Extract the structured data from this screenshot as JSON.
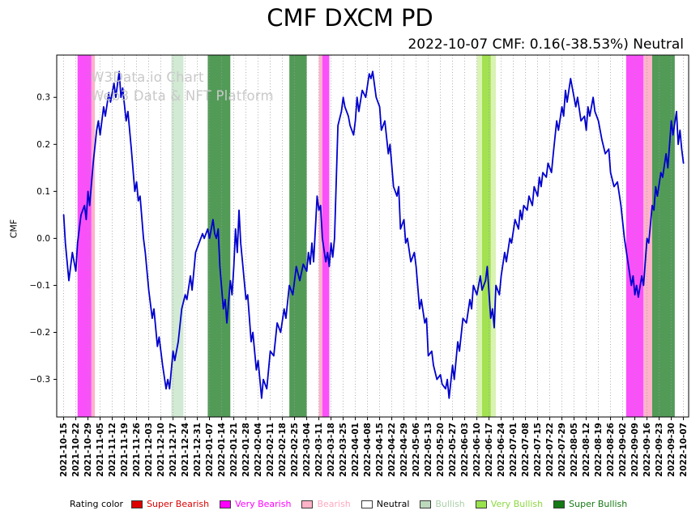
{
  "title": "CMF DXCM PD",
  "subtitle": "2022-10-07 CMF: 0.16(-38.53%) Neutral",
  "watermark": {
    "line1": "W3Data.io Chart",
    "line2": "Web3 Data & NFT Platform"
  },
  "legend": {
    "title": "Rating color",
    "items": [
      {
        "label": "Super Bearish",
        "color": "#dd0000",
        "text_color": "#dd0000"
      },
      {
        "label": "Very Bearish",
        "color": "#ff00ff",
        "text_color": "#ff00ff"
      },
      {
        "label": "Bearish",
        "color": "#ffb3c8",
        "text_color": "#ffa8c0"
      },
      {
        "label": "Neutral",
        "color": "#ffffff",
        "text_color": "#000000"
      },
      {
        "label": "Bullish",
        "color": "#bcd9bc",
        "text_color": "#a9cfa9"
      },
      {
        "label": "Very Bullish",
        "color": "#98e24e",
        "text_color": "#8bd83e"
      },
      {
        "label": "Super Bullish",
        "color": "#157915",
        "text_color": "#157915"
      }
    ]
  },
  "chart_data": {
    "type": "line",
    "title": "CMF DXCM PD",
    "xlabel": "",
    "ylabel": "CMF",
    "ylim": [
      -0.38,
      0.39
    ],
    "yticks": [
      -0.3,
      -0.2,
      -0.1,
      0.0,
      0.1,
      0.2,
      0.3
    ],
    "grid": "vertical-dotted",
    "x_start_date": "2021-10-15",
    "x_tick_labels": [
      "2021-10-15",
      "2021-10-22",
      "2021-10-29",
      "2021-11-05",
      "2021-11-12",
      "2021-11-19",
      "2021-11-26",
      "2021-12-03",
      "2021-12-10",
      "2021-12-17",
      "2021-12-24",
      "2021-12-31",
      "2022-01-07",
      "2022-01-14",
      "2022-01-21",
      "2022-01-28",
      "2022-02-04",
      "2022-02-11",
      "2022-02-18",
      "2022-02-25",
      "2022-03-04",
      "2022-03-11",
      "2022-03-18",
      "2022-03-25",
      "2022-04-01",
      "2022-04-08",
      "2022-04-15",
      "2022-04-22",
      "2022-04-29",
      "2022-05-06",
      "2022-05-13",
      "2022-05-20",
      "2022-05-27",
      "2022-06-03",
      "2022-06-10",
      "2022-06-17",
      "2022-06-24",
      "2022-07-01",
      "2022-07-08",
      "2022-07-15",
      "2022-07-22",
      "2022-07-29",
      "2022-08-05",
      "2022-08-12",
      "2022-08-19",
      "2022-08-26",
      "2022-09-02",
      "2022-09-09",
      "2022-09-16",
      "2022-09-23",
      "2022-09-30",
      "2022-10-07"
    ],
    "bands": [
      {
        "start": "2021-10-23",
        "end": "2021-10-31",
        "color": "#fa50fa",
        "label": "Very Bearish"
      },
      {
        "start": "2021-10-31",
        "end": "2021-11-02",
        "color": "#ffb3cb",
        "label": "Bearish"
      },
      {
        "start": "2021-12-16",
        "end": "2021-12-23",
        "color": "#d2e9d4",
        "label": "Bullish"
      },
      {
        "start": "2022-01-06",
        "end": "2022-01-19",
        "color": "#529b57",
        "label": "Super Bullish"
      },
      {
        "start": "2022-02-22",
        "end": "2022-03-04",
        "color": "#529b57",
        "label": "Super Bullish"
      },
      {
        "start": "2022-03-11",
        "end": "2022-03-13",
        "color": "#ffb3cb",
        "label": "Bearish"
      },
      {
        "start": "2022-03-13",
        "end": "2022-03-17",
        "color": "#fa50fa",
        "label": "Very Bearish"
      },
      {
        "start": "2022-06-10",
        "end": "2022-06-21",
        "color": "#d9f3b2",
        "label": "Very Bullish (light)"
      },
      {
        "start": "2022-06-13",
        "end": "2022-06-18",
        "color": "#a2e251",
        "label": "Very Bullish"
      },
      {
        "start": "2022-09-04",
        "end": "2022-09-14",
        "color": "#fa50fa",
        "label": "Very Bearish"
      },
      {
        "start": "2022-09-14",
        "end": "2022-09-19",
        "color": "#ffb3cb",
        "label": "Bearish"
      },
      {
        "start": "2022-09-19",
        "end": "2022-10-02",
        "color": "#529b57",
        "label": "Super Bullish"
      }
    ],
    "series": [
      {
        "name": "CMF",
        "color": "#0000cd",
        "points": [
          [
            0,
            0.05
          ],
          [
            1,
            -0.01
          ],
          [
            3,
            -0.09
          ],
          [
            5,
            -0.03
          ],
          [
            7,
            -0.07
          ],
          [
            8,
            -0.01
          ],
          [
            10,
            0.05
          ],
          [
            12,
            0.07
          ],
          [
            13,
            0.04
          ],
          [
            14,
            0.1
          ],
          [
            15,
            0.07
          ],
          [
            17,
            0.16
          ],
          [
            19,
            0.23
          ],
          [
            20,
            0.25
          ],
          [
            21,
            0.22
          ],
          [
            23,
            0.28
          ],
          [
            24,
            0.26
          ],
          [
            26,
            0.31
          ],
          [
            27,
            0.29
          ],
          [
            29,
            0.33
          ],
          [
            30,
            0.3
          ],
          [
            32,
            0.355
          ],
          [
            33,
            0.3
          ],
          [
            34,
            0.32
          ],
          [
            36,
            0.25
          ],
          [
            37,
            0.27
          ],
          [
            39,
            0.19
          ],
          [
            41,
            0.1
          ],
          [
            42,
            0.12
          ],
          [
            43,
            0.08
          ],
          [
            44,
            0.09
          ],
          [
            46,
            0
          ],
          [
            47,
            -0.03
          ],
          [
            49,
            -0.11
          ],
          [
            51,
            -0.17
          ],
          [
            52,
            -0.15
          ],
          [
            54,
            -0.23
          ],
          [
            55,
            -0.21
          ],
          [
            57,
            -0.27
          ],
          [
            59,
            -0.32
          ],
          [
            60,
            -0.3
          ],
          [
            61,
            -0.32
          ],
          [
            63,
            -0.24
          ],
          [
            64,
            -0.26
          ],
          [
            66,
            -0.22
          ],
          [
            68,
            -0.15
          ],
          [
            70,
            -0.12
          ],
          [
            71,
            -0.13
          ],
          [
            73,
            -0.08
          ],
          [
            74,
            -0.11
          ],
          [
            76,
            -0.03
          ],
          [
            78,
            -0.01
          ],
          [
            80,
            0.01
          ],
          [
            81,
            0
          ],
          [
            83,
            0.02
          ],
          [
            84,
            0
          ],
          [
            86,
            0.04
          ],
          [
            87,
            0.01
          ],
          [
            88,
            0
          ],
          [
            89,
            0.02
          ],
          [
            90,
            -0.06
          ],
          [
            92,
            -0.15
          ],
          [
            93,
            -0.13
          ],
          [
            94,
            -0.18
          ],
          [
            96,
            -0.09
          ],
          [
            97,
            -0.12
          ],
          [
            98,
            -0.06
          ],
          [
            99,
            0.02
          ],
          [
            100,
            -0.03
          ],
          [
            101,
            0.06
          ],
          [
            102,
            -0.01
          ],
          [
            103,
            -0.05
          ],
          [
            105,
            -0.13
          ],
          [
            106,
            -0.12
          ],
          [
            108,
            -0.22
          ],
          [
            109,
            -0.2
          ],
          [
            111,
            -0.28
          ],
          [
            112,
            -0.26
          ],
          [
            114,
            -0.34
          ],
          [
            115,
            -0.3
          ],
          [
            117,
            -0.32
          ],
          [
            119,
            -0.24
          ],
          [
            121,
            -0.25
          ],
          [
            123,
            -0.18
          ],
          [
            125,
            -0.2
          ],
          [
            127,
            -0.15
          ],
          [
            128,
            -0.17
          ],
          [
            130,
            -0.1
          ],
          [
            132,
            -0.12
          ],
          [
            134,
            -0.06
          ],
          [
            136,
            -0.09
          ],
          [
            138,
            -0.055
          ],
          [
            140,
            -0.07
          ],
          [
            141,
            -0.03
          ],
          [
            142,
            -0.055
          ],
          [
            143,
            -0.01
          ],
          [
            144,
            -0.05
          ],
          [
            146,
            0.09
          ],
          [
            147,
            0.06
          ],
          [
            148,
            0.07
          ],
          [
            149,
            0
          ],
          [
            151,
            -0.05
          ],
          [
            152,
            -0.03
          ],
          [
            153,
            -0.06
          ],
          [
            154,
            -0.01
          ],
          [
            155,
            -0.04
          ],
          [
            156,
            0
          ],
          [
            158,
            0.24
          ],
          [
            160,
            0.27
          ],
          [
            161,
            0.3
          ],
          [
            162,
            0.28
          ],
          [
            164,
            0.26
          ],
          [
            165,
            0.24
          ],
          [
            167,
            0.22
          ],
          [
            168,
            0.25
          ],
          [
            169,
            0.3
          ],
          [
            170,
            0.27
          ],
          [
            172,
            0.315
          ],
          [
            174,
            0.3
          ],
          [
            176,
            0.35
          ],
          [
            177,
            0.34
          ],
          [
            178,
            0.355
          ],
          [
            180,
            0.3
          ],
          [
            182,
            0.28
          ],
          [
            183,
            0.23
          ],
          [
            185,
            0.25
          ],
          [
            187,
            0.18
          ],
          [
            188,
            0.2
          ],
          [
            190,
            0.11
          ],
          [
            192,
            0.09
          ],
          [
            193,
            0.11
          ],
          [
            194,
            0.02
          ],
          [
            196,
            0.04
          ],
          [
            197,
            -0.01
          ],
          [
            198,
            0
          ],
          [
            200,
            -0.05
          ],
          [
            202,
            -0.03
          ],
          [
            203,
            -0.06
          ],
          [
            205,
            -0.15
          ],
          [
            206,
            -0.13
          ],
          [
            208,
            -0.18
          ],
          [
            209,
            -0.17
          ],
          [
            210,
            -0.25
          ],
          [
            212,
            -0.24
          ],
          [
            213,
            -0.27
          ],
          [
            215,
            -0.3
          ],
          [
            217,
            -0.29
          ],
          [
            218,
            -0.31
          ],
          [
            220,
            -0.32
          ],
          [
            221,
            -0.3
          ],
          [
            222,
            -0.34
          ],
          [
            224,
            -0.27
          ],
          [
            225,
            -0.3
          ],
          [
            227,
            -0.22
          ],
          [
            228,
            -0.24
          ],
          [
            230,
            -0.17
          ],
          [
            232,
            -0.18
          ],
          [
            234,
            -0.13
          ],
          [
            235,
            -0.15
          ],
          [
            236,
            -0.1
          ],
          [
            238,
            -0.12
          ],
          [
            240,
            -0.08
          ],
          [
            241,
            -0.11
          ],
          [
            243,
            -0.09
          ],
          [
            244,
            -0.06
          ],
          [
            246,
            -0.17
          ],
          [
            247,
            -0.15
          ],
          [
            248,
            -0.19
          ],
          [
            249,
            -0.1
          ],
          [
            251,
            -0.12
          ],
          [
            252,
            -0.08
          ],
          [
            254,
            -0.03
          ],
          [
            255,
            -0.05
          ],
          [
            257,
            0
          ],
          [
            258,
            -0.01
          ],
          [
            260,
            0.04
          ],
          [
            262,
            0.02
          ],
          [
            263,
            0.06
          ],
          [
            264,
            0.04
          ],
          [
            265,
            0.07
          ],
          [
            267,
            0.06
          ],
          [
            268,
            0.09
          ],
          [
            270,
            0.07
          ],
          [
            271,
            0.11
          ],
          [
            273,
            0.09
          ],
          [
            274,
            0.13
          ],
          [
            275,
            0.11
          ],
          [
            276,
            0.14
          ],
          [
            278,
            0.13
          ],
          [
            279,
            0.16
          ],
          [
            281,
            0.14
          ],
          [
            282,
            0.18
          ],
          [
            284,
            0.25
          ],
          [
            285,
            0.23
          ],
          [
            287,
            0.28
          ],
          [
            288,
            0.26
          ],
          [
            289,
            0.315
          ],
          [
            290,
            0.29
          ],
          [
            292,
            0.34
          ],
          [
            293,
            0.32
          ],
          [
            295,
            0.28
          ],
          [
            296,
            0.3
          ],
          [
            298,
            0.25
          ],
          [
            300,
            0.26
          ],
          [
            301,
            0.23
          ],
          [
            302,
            0.28
          ],
          [
            303,
            0.26
          ],
          [
            305,
            0.3
          ],
          [
            306,
            0.27
          ],
          [
            308,
            0.25
          ],
          [
            310,
            0.21
          ],
          [
            312,
            0.18
          ],
          [
            314,
            0.19
          ],
          [
            315,
            0.14
          ],
          [
            317,
            0.11
          ],
          [
            319,
            0.12
          ],
          [
            321,
            0.07
          ],
          [
            323,
            0
          ],
          [
            325,
            -0.05
          ],
          [
            327,
            -0.1
          ],
          [
            328,
            -0.08
          ],
          [
            329,
            -0.12
          ],
          [
            330,
            -0.1
          ],
          [
            331,
            -0.125
          ],
          [
            333,
            -0.08
          ],
          [
            334,
            -0.1
          ],
          [
            336,
            0
          ],
          [
            337,
            -0.01
          ],
          [
            339,
            0.07
          ],
          [
            340,
            0.06
          ],
          [
            341,
            0.11
          ],
          [
            342,
            0.09
          ],
          [
            344,
            0.14
          ],
          [
            345,
            0.13
          ],
          [
            347,
            0.18
          ],
          [
            348,
            0.15
          ],
          [
            350,
            0.25
          ],
          [
            351,
            0.22
          ],
          [
            353,
            0.27
          ],
          [
            354,
            0.2
          ],
          [
            355,
            0.23
          ],
          [
            356,
            0.19
          ],
          [
            357,
            0.16
          ]
        ]
      }
    ],
    "last_point": {
      "date": "2022-10-07",
      "value": 0.16,
      "change_pct": "-38.53%",
      "rating": "Neutral"
    }
  }
}
